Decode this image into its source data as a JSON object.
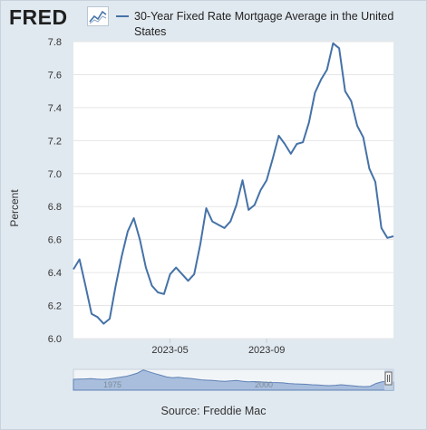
{
  "header": {
    "logo_text": "FRED",
    "logo_icon": "chart-line-icon",
    "legend_label": "30-Year Fixed Rate Mortgage Average in the United States",
    "series_color": "#4572a7"
  },
  "chart_data": {
    "type": "line",
    "ylabel": "Percent",
    "ylim": [
      6.0,
      7.8
    ],
    "yticks": [
      6.0,
      6.2,
      6.4,
      6.6,
      6.8,
      7.0,
      7.2,
      7.4,
      7.6,
      7.8
    ],
    "ytick_labels": [
      "6.0",
      "6.2",
      "6.4",
      "6.6",
      "6.8",
      "7.0",
      "7.2",
      "7.4",
      "7.6",
      "7.8"
    ],
    "xticks": [
      {
        "label": "2023-05",
        "index": 16
      },
      {
        "label": "2023-09",
        "index": 32
      }
    ],
    "grid": "horizontal",
    "series": [
      {
        "name": "30-Year Fixed Rate Mortgage Average in the United States",
        "values": [
          6.42,
          6.48,
          6.32,
          6.15,
          6.13,
          6.09,
          6.12,
          6.32,
          6.5,
          6.65,
          6.73,
          6.6,
          6.43,
          6.32,
          6.28,
          6.27,
          6.39,
          6.43,
          6.39,
          6.35,
          6.39,
          6.57,
          6.79,
          6.71,
          6.69,
          6.67,
          6.71,
          6.81,
          6.96,
          6.78,
          6.81,
          6.9,
          6.96,
          7.09,
          7.23,
          7.18,
          7.12,
          7.18,
          7.19,
          7.31,
          7.49,
          7.57,
          7.63,
          7.79,
          7.76,
          7.5,
          7.44,
          7.29,
          7.22,
          7.03,
          6.95,
          6.67,
          6.61,
          6.62
        ]
      }
    ]
  },
  "navigator": {
    "labels": [
      "1975",
      "2000"
    ],
    "overview": [
      8.9,
      9.0,
      9.2,
      9.4,
      9.0,
      8.8,
      9.1,
      9.8,
      10.5,
      11.2,
      12.5,
      14.0,
      16.5,
      15.0,
      13.5,
      12.2,
      10.8,
      10.2,
      10.5,
      10.0,
      9.6,
      9.0,
      8.4,
      8.1,
      7.9,
      7.5,
      7.2,
      7.6,
      7.9,
      7.3,
      6.9,
      7.0,
      6.8,
      6.5,
      6.3,
      6.2,
      6.0,
      5.5,
      5.2,
      5.0,
      4.8,
      4.4,
      4.2,
      3.9,
      3.7,
      4.0,
      4.4,
      4.0,
      3.6,
      3.2,
      2.9,
      3.2,
      5.5,
      6.8,
      7.2,
      6.6
    ],
    "handle_icon": "range-handle-icon"
  },
  "footer": {
    "source": "Source: Freddie Mac"
  }
}
